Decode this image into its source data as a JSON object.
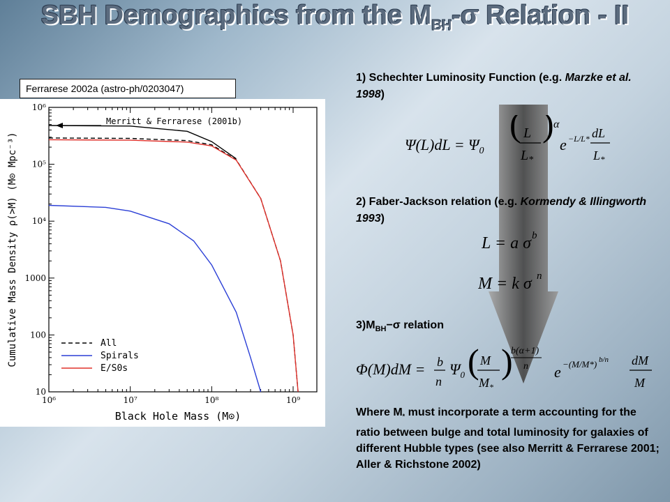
{
  "title": {
    "main": "SBH Demographics from the M",
    "sub": "BH",
    "rest": "-σ Relation - II"
  },
  "citation": "Ferrarese 2002a (astro-ph/0203047)",
  "steps": {
    "s1a": "1) Schechter Luminosity Function (e.g. ",
    "s1b": "Marzke et al. 1998",
    "s1c": ")",
    "s2a": "2) Faber-Jackson relation (e.g. ",
    "s2b": "Kormendy & Illingworth 1993",
    "s2c": ")",
    "s3a": "3)M",
    "s3sub": "BH",
    "s3b": "−σ  relation",
    "where": "Where M",
    "where_sub": "*",
    "where_rest": " must incorporate a term accounting for the ratio between bulge and total luminosity for galaxies of different Hubble types (see also Merritt & Ferrarese 2001; Aller & Richstone 2002)"
  },
  "equations": {
    "eq1": "Ψ(L)dL = Ψ₀ (L/L*)^α e^(−L/L*) dL/L*",
    "eq2": "L = a σ^b",
    "eq3": "M = k σ^n",
    "eq4": "Φ(M)dM = (b/n) Ψ₀ (M/M*)^(b(α+1)/n) e^(−(M/M*)^(b/n)) dM/M"
  },
  "chart_data": {
    "type": "line",
    "xlabel": "Black Hole Mass (M⊙)",
    "ylabel": "Cumulative Mass Density ρ(>M) (M⊙ Mpc⁻³)",
    "xscale": "log",
    "yscale": "log",
    "xlim": [
      1000000,
      1000000000
    ],
    "ylim": [
      10,
      1000000
    ],
    "x_ticks": [
      "10⁶",
      "10⁷",
      "10⁸",
      "10⁹"
    ],
    "y_ticks": [
      "10⁶",
      "10⁵",
      "10⁴",
      "1000",
      "100",
      "10"
    ],
    "annotation": "Merritt & Ferrarese (2001b)",
    "legend": [
      "All",
      "Spirals",
      "E/S0s"
    ],
    "legend_position": "bottom-left",
    "series": [
      {
        "name": "All",
        "style": "dashed",
        "color": "#000000",
        "x": [
          1000000,
          10000000,
          50000000,
          100000000,
          200000000,
          400000000,
          700000000,
          1000000000,
          1150000000
        ],
        "y": [
          290000,
          285000,
          260000,
          220000,
          120000,
          25000,
          2000,
          100,
          10
        ]
      },
      {
        "name": "Spirals",
        "style": "solid",
        "color": "#2b3fd6",
        "x": [
          1000000,
          5000000,
          10000000,
          30000000,
          60000000,
          100000000,
          200000000,
          300000000,
          400000000
        ],
        "y": [
          19000,
          17500,
          15000,
          9000,
          4500,
          1700,
          250,
          40,
          10
        ]
      },
      {
        "name": "E/S0s",
        "style": "solid",
        "color": "#e0302a",
        "x": [
          1000000,
          10000000,
          50000000,
          100000000,
          200000000,
          400000000,
          700000000,
          1000000000,
          1150000000
        ],
        "y": [
          270000,
          265000,
          245000,
          210000,
          118000,
          25000,
          2000,
          100,
          10
        ]
      },
      {
        "name": "Merritt & Ferrarese (2001b)",
        "style": "solid",
        "color": "#000000",
        "x": [
          1000000,
          10000000,
          50000000,
          100000000,
          200000000
        ],
        "y": [
          480000,
          470000,
          380000,
          250000,
          125000
        ]
      }
    ]
  }
}
